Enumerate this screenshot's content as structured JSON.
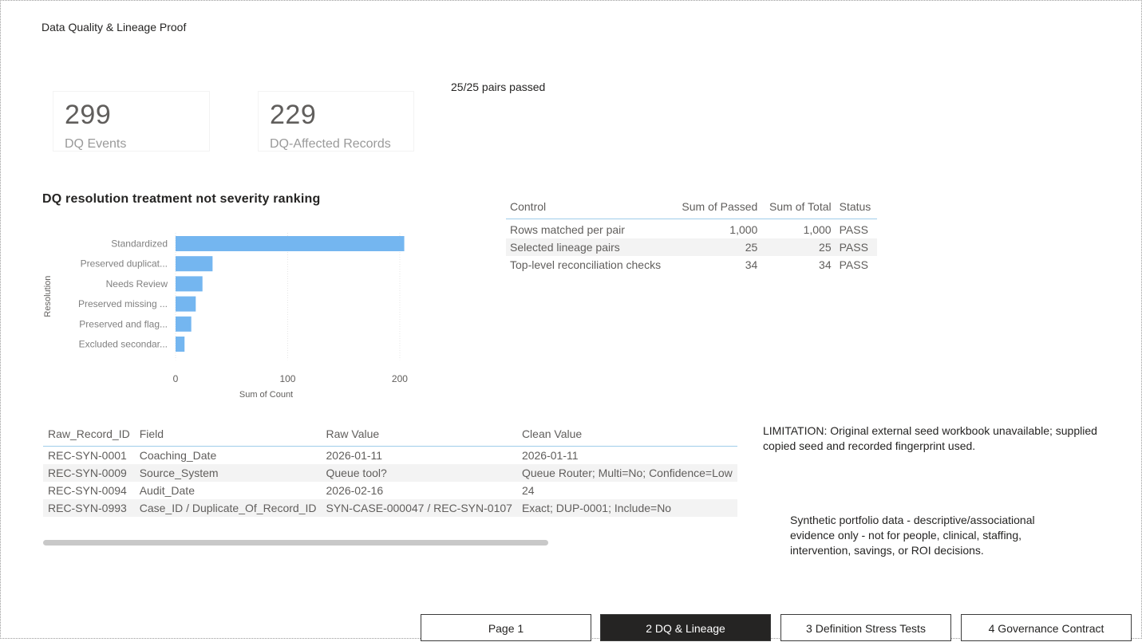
{
  "page_title": "Data Quality & Lineage Proof",
  "pairs_status": "25/25 pairs passed",
  "cards": [
    {
      "value": "299",
      "label": "DQ Events"
    },
    {
      "value": "229",
      "label": "DQ-Affected Records"
    }
  ],
  "chart_data": {
    "type": "bar",
    "orientation": "horizontal",
    "title": "DQ resolution treatment not severity ranking",
    "ylabel": "Resolution",
    "xlabel": "Sum of Count",
    "categories": [
      "Standardized",
      "Preserved duplicat...",
      "Needs Review",
      "Preserved missing ...",
      "Preserved and flag...",
      "Excluded secondar..."
    ],
    "values": [
      204,
      33,
      24,
      18,
      14,
      8
    ],
    "xlim": [
      0,
      210
    ],
    "xticks": [
      0,
      100,
      200
    ],
    "xtick_labels": [
      "0",
      "100",
      "200"
    ],
    "grid": true,
    "bar_color": "#74b6f0"
  },
  "control_table": {
    "columns": [
      "Control",
      "Sum of Passed",
      "Sum of Total",
      "Status"
    ],
    "rows": [
      [
        "Rows matched per pair",
        "1,000",
        "1,000",
        "PASS"
      ],
      [
        "Selected lineage pairs",
        "25",
        "25",
        "PASS"
      ],
      [
        "Top-level reconciliation checks",
        "34",
        "34",
        "PASS"
      ]
    ]
  },
  "lineage_table": {
    "columns": [
      "Raw_Record_ID",
      "Field",
      "Raw Value",
      "Clean Value"
    ],
    "rows": [
      [
        "REC-SYN-0001",
        "Coaching_Date",
        "2026-01-11",
        "2026-01-11"
      ],
      [
        "REC-SYN-0009",
        "Source_System",
        "Queue tool?",
        "Queue Router; Multi=No; Confidence=Low"
      ],
      [
        "REC-SYN-0094",
        "Audit_Date",
        "2026-02-16",
        "24"
      ],
      [
        "REC-SYN-0993",
        "Case_ID / Duplicate_Of_Record_ID",
        "SYN-CASE-000047 / REC-SYN-0107",
        "Exact; DUP-0001; Include=No"
      ]
    ]
  },
  "limitation_note": "LIMITATION: Original external seed workbook unavailable; supplied copied seed and recorded fingerprint used.",
  "synthetic_note": "Synthetic portfolio data - descriptive/associational evidence only - not for people, clinical, staffing, intervention, savings, or ROI decisions.",
  "tabs": [
    {
      "label": "Page 1",
      "active": false
    },
    {
      "label": "2 DQ & Lineage",
      "active": true
    },
    {
      "label": "3 Definition Stress Tests",
      "active": false
    },
    {
      "label": "4 Governance Contract",
      "active": false
    }
  ]
}
